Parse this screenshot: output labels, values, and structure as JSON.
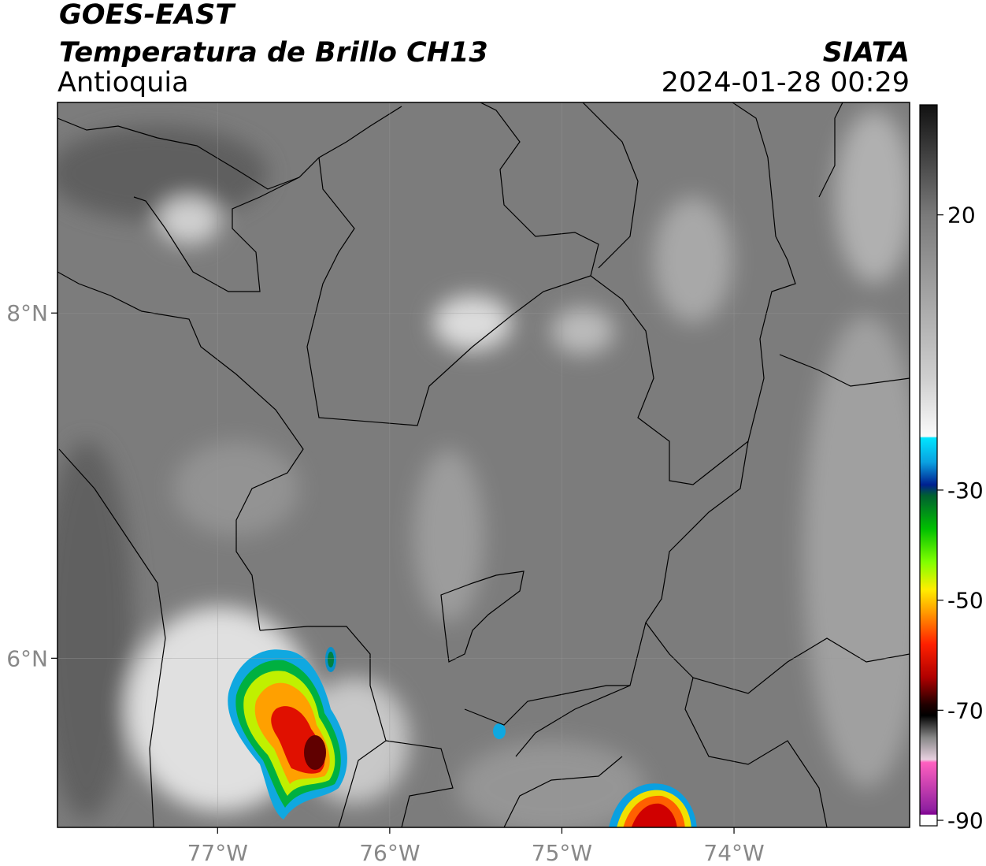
{
  "header": {
    "satellite": "GOES-EAST",
    "product": "Temperatura de Brillo CH13",
    "region": "Antioquia",
    "source": "SIATA",
    "datetime": "2024-01-28 00:29"
  },
  "map": {
    "lonlim": [
      -77.93,
      -72.98
    ],
    "latlim": [
      5.02,
      9.22
    ],
    "lon_ticks": [
      {
        "value": -77,
        "label": "77°W"
      },
      {
        "value": -76,
        "label": "76°W"
      },
      {
        "value": -75,
        "label": "75°W"
      },
      {
        "value": -74,
        "label": "74°W"
      }
    ],
    "lat_ticks": [
      {
        "value": 8,
        "label": "8°N"
      },
      {
        "value": 6,
        "label": "6°N"
      }
    ]
  },
  "colorbar": {
    "lim": [
      -91,
      40
    ],
    "ticks": [
      20,
      -30,
      -50,
      -70,
      -90
    ]
  }
}
